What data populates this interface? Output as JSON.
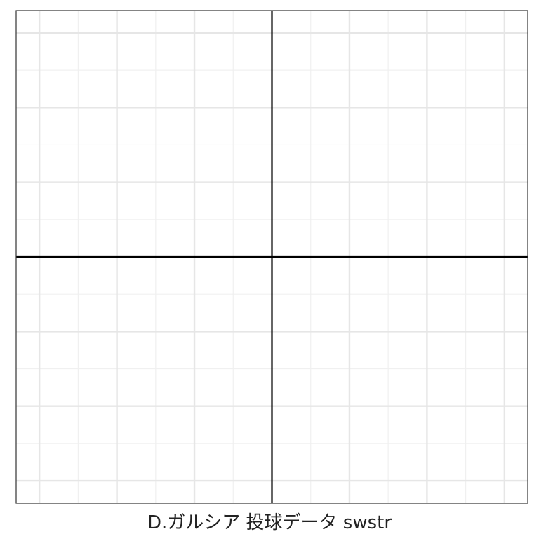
{
  "chart_data": {
    "type": "scatter",
    "title": "",
    "xlabel": "D.ガルシア 投球データ swstr",
    "ylabel": "",
    "xlim": [
      -3,
      3
    ],
    "ylim": [
      -3,
      3
    ],
    "x_ticks": [
      -3,
      -2,
      -1,
      1,
      2,
      3
    ],
    "y_ticks": [
      -3,
      -2,
      -1,
      1,
      2,
      3
    ],
    "minor_lines": true,
    "reference_lines": {
      "x": 0,
      "y": 0
    },
    "series": [],
    "grid": true,
    "legend": "none"
  },
  "colors": {
    "grid_major": "#e6e6e6",
    "grid_minor": "#f0f0f0",
    "axes_lines": "#000000",
    "frame": "#333333"
  }
}
